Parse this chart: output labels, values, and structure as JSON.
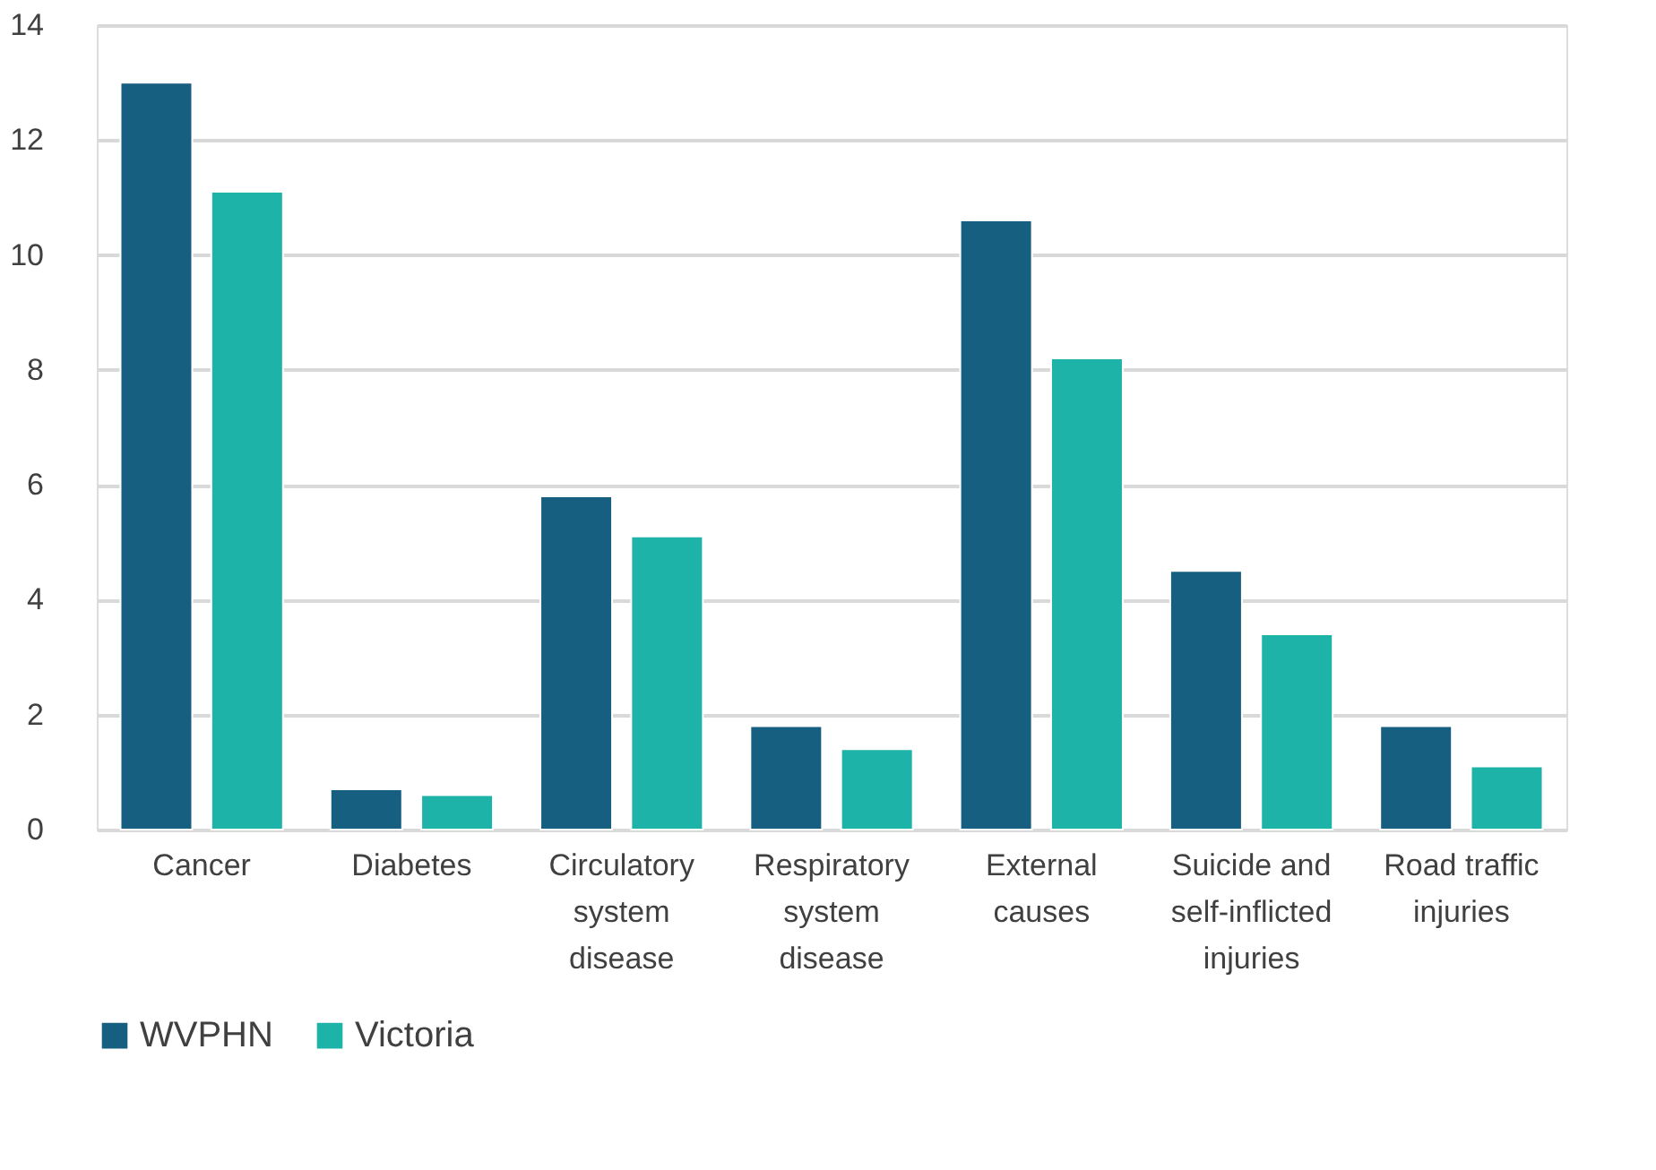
{
  "chart_data": {
    "type": "bar",
    "categories": [
      "Cancer",
      "Diabetes",
      "Circulatory system disease",
      "Respiratory system disease",
      "External causes",
      "Suicide and self-inflicted injuries",
      "Road traffic injuries"
    ],
    "series": [
      {
        "name": "WVPHN",
        "color": "#175f80",
        "values": [
          13,
          0.7,
          5.8,
          1.8,
          10.6,
          4.5,
          1.8
        ]
      },
      {
        "name": "Victoria",
        "color": "#1db3a8",
        "values": [
          11.1,
          0.6,
          5.1,
          1.4,
          8.2,
          3.4,
          1.1
        ]
      }
    ],
    "ylim": [
      0,
      14
    ],
    "yticks": [
      0,
      2,
      4,
      6,
      8,
      10,
      12,
      14
    ],
    "grid": "y",
    "legend": "bottom"
  }
}
